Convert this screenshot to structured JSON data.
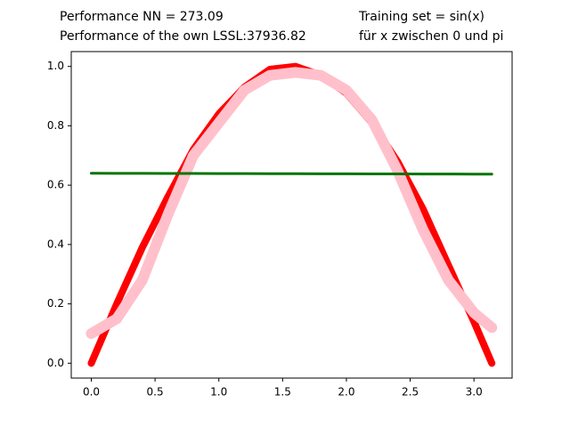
{
  "chart_data": {
    "type": "line",
    "annotations": [
      "Performance NN = 273.09",
      "Performance of the own LSSL:37936.82",
      "Training set = sin(x)",
      "für x zwischen 0 und pi"
    ],
    "x": [
      0,
      0.2,
      0.4,
      0.6,
      0.8,
      1.0,
      1.2,
      1.4,
      1.6,
      1.8,
      2.0,
      2.2,
      2.4,
      2.6,
      2.8,
      3.0,
      3.14
    ],
    "series": [
      {
        "color": "#ff0000",
        "width": 8,
        "values": [
          0,
          0.2,
          0.39,
          0.56,
          0.72,
          0.84,
          0.93,
          0.99,
          1.0,
          0.97,
          0.91,
          0.81,
          0.68,
          0.52,
          0.33,
          0.14,
          0.0
        ]
      },
      {
        "color": "#ffc0cb",
        "width": 12,
        "values": [
          0.1,
          0.15,
          0.28,
          0.5,
          0.7,
          0.81,
          0.92,
          0.97,
          0.98,
          0.97,
          0.92,
          0.82,
          0.65,
          0.45,
          0.28,
          0.17,
          0.12
        ]
      },
      {
        "color": "#007400",
        "width": 3,
        "values": [
          0.64,
          0.6398,
          0.6396,
          0.6394,
          0.6392,
          0.639,
          0.6389,
          0.6388,
          0.6386,
          0.6384,
          0.6382,
          0.638,
          0.6378,
          0.6376,
          0.6374,
          0.6372,
          0.637
        ]
      }
    ],
    "xlim": [
      -0.157,
      3.299
    ],
    "ylim": [
      -0.05,
      1.05
    ],
    "xticks": [
      {
        "value": 0,
        "label": "0.0"
      },
      0.5,
      {
        "value": 1,
        "label": "1.0"
      },
      1.5,
      {
        "value": 2,
        "label": "2.0"
      },
      2.5,
      {
        "value": 3,
        "label": "3.0"
      }
    ],
    "yticks": [
      {
        "value": 0,
        "label": "0.0"
      },
      0.2,
      0.4,
      0.6,
      0.8,
      {
        "value": 1,
        "label": "1.0"
      }
    ]
  }
}
